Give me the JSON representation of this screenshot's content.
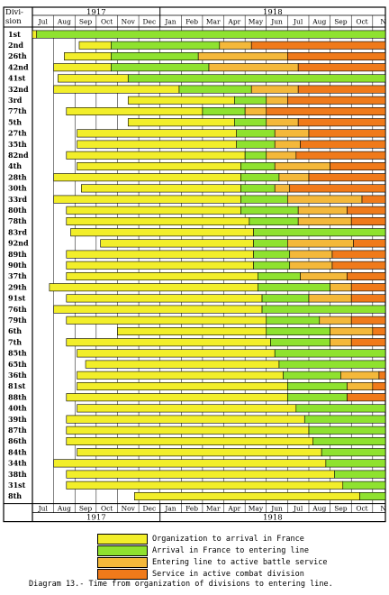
{
  "chart_data": {
    "type": "bar",
    "row_header": "Divi-\nsion",
    "months": [
      "Jul",
      "Aug",
      "Sep",
      "Oct",
      "Nov",
      "Dec",
      "Jan",
      "Feb",
      "Mar",
      "Apr",
      "May",
      "Jun",
      "Jul",
      "Aug",
      "Sep",
      "Oct",
      "N"
    ],
    "bottom_months": [
      "Jul",
      "Aug",
      "Sep",
      "Oct",
      "Nov",
      "Dec",
      "Jan",
      "Feb",
      "Mar",
      "Apr",
      "May",
      "Jun",
      "Jul",
      "Aug",
      "Sep",
      "Oct",
      "N"
    ],
    "top_year_labels": [
      "1917",
      "1918"
    ],
    "bottom_year_labels": [
      "1917",
      "1918"
    ],
    "colors": {
      "organization": "#f2ee2a",
      "arrival": "#8fe22f",
      "entering": "#f4b83a",
      "service": "#f07a1a"
    },
    "legend": [
      {
        "key": "organization",
        "label": "Organization to arrival in France"
      },
      {
        "key": "arrival",
        "label": "Arrival in France to entering line"
      },
      {
        "key": "entering",
        "label": "Entering line to active battle service"
      },
      {
        "key": "service",
        "label": "Service in active combat division"
      }
    ],
    "x_axis_note": "months from July 1917 to November 1918",
    "xlim": [
      0,
      16.6
    ],
    "divisions": [
      {
        "name": "1st",
        "segments": [
          [
            0.0,
            0.2,
            "organization"
          ],
          [
            0.2,
            16.6,
            "arrival"
          ]
        ]
      },
      {
        "name": "2nd",
        "segments": [
          [
            2.2,
            3.7,
            "organization"
          ],
          [
            3.7,
            8.8,
            "arrival"
          ],
          [
            8.8,
            10.3,
            "entering"
          ],
          [
            10.3,
            16.6,
            "service"
          ]
        ]
      },
      {
        "name": "26th",
        "segments": [
          [
            1.5,
            3.7,
            "organization"
          ],
          [
            3.7,
            7.8,
            "arrival"
          ],
          [
            7.8,
            12.0,
            "entering"
          ],
          [
            12.0,
            16.6,
            "service"
          ]
        ]
      },
      {
        "name": "42nd",
        "segments": [
          [
            1.0,
            3.7,
            "organization"
          ],
          [
            3.7,
            8.3,
            "arrival"
          ],
          [
            8.3,
            12.5,
            "entering"
          ],
          [
            12.5,
            16.6,
            "service"
          ]
        ]
      },
      {
        "name": "41st",
        "segments": [
          [
            1.2,
            4.5,
            "organization"
          ],
          [
            4.5,
            16.6,
            "arrival"
          ]
        ]
      },
      {
        "name": "32nd",
        "segments": [
          [
            1.0,
            6.9,
            "organization"
          ],
          [
            6.9,
            10.3,
            "arrival"
          ],
          [
            10.3,
            12.5,
            "entering"
          ],
          [
            12.5,
            16.6,
            "service"
          ]
        ]
      },
      {
        "name": "3rd",
        "segments": [
          [
            4.5,
            9.5,
            "organization"
          ],
          [
            9.5,
            11.0,
            "arrival"
          ],
          [
            11.0,
            12.0,
            "entering"
          ],
          [
            12.0,
            16.6,
            "service"
          ]
        ]
      },
      {
        "name": "77th",
        "segments": [
          [
            1.6,
            8.0,
            "organization"
          ],
          [
            8.0,
            10.0,
            "arrival"
          ],
          [
            10.0,
            11.0,
            "entering"
          ],
          [
            11.0,
            16.6,
            "service"
          ]
        ]
      },
      {
        "name": "5th",
        "segments": [
          [
            4.5,
            9.5,
            "organization"
          ],
          [
            9.5,
            11.0,
            "arrival"
          ],
          [
            11.0,
            12.5,
            "entering"
          ],
          [
            12.5,
            16.6,
            "service"
          ]
        ]
      },
      {
        "name": "27th",
        "segments": [
          [
            2.1,
            9.6,
            "organization"
          ],
          [
            9.6,
            11.4,
            "arrival"
          ],
          [
            11.4,
            13.0,
            "entering"
          ],
          [
            13.0,
            16.6,
            "service"
          ]
        ]
      },
      {
        "name": "35th",
        "segments": [
          [
            2.1,
            9.6,
            "organization"
          ],
          [
            9.6,
            11.4,
            "arrival"
          ],
          [
            11.4,
            12.6,
            "entering"
          ],
          [
            12.6,
            16.6,
            "service"
          ]
        ]
      },
      {
        "name": "82nd",
        "segments": [
          [
            1.6,
            10.0,
            "organization"
          ],
          [
            10.0,
            11.0,
            "arrival"
          ],
          [
            11.0,
            12.4,
            "entering"
          ],
          [
            12.4,
            16.6,
            "service"
          ]
        ]
      },
      {
        "name": "4th",
        "segments": [
          [
            2.1,
            9.8,
            "organization"
          ],
          [
            9.8,
            11.4,
            "arrival"
          ],
          [
            11.4,
            14.0,
            "entering"
          ],
          [
            14.0,
            16.6,
            "service"
          ]
        ]
      },
      {
        "name": "28th",
        "segments": [
          [
            1.0,
            9.8,
            "organization"
          ],
          [
            9.8,
            11.6,
            "arrival"
          ],
          [
            11.6,
            13.0,
            "entering"
          ],
          [
            13.0,
            16.6,
            "service"
          ]
        ]
      },
      {
        "name": "30th",
        "segments": [
          [
            2.3,
            9.8,
            "organization"
          ],
          [
            9.8,
            11.4,
            "arrival"
          ],
          [
            11.4,
            12.1,
            "entering"
          ],
          [
            12.1,
            16.6,
            "service"
          ]
        ]
      },
      {
        "name": "33rd",
        "segments": [
          [
            1.0,
            9.8,
            "organization"
          ],
          [
            9.8,
            12.0,
            "arrival"
          ],
          [
            12.0,
            15.5,
            "entering"
          ],
          [
            15.5,
            16.6,
            "service"
          ]
        ]
      },
      {
        "name": "80th",
        "segments": [
          [
            1.6,
            9.8,
            "organization"
          ],
          [
            9.8,
            12.5,
            "arrival"
          ],
          [
            12.5,
            14.8,
            "entering"
          ],
          [
            14.8,
            16.6,
            "service"
          ]
        ]
      },
      {
        "name": "78th",
        "segments": [
          [
            1.6,
            10.2,
            "organization"
          ],
          [
            10.2,
            12.5,
            "arrival"
          ],
          [
            12.5,
            15.0,
            "entering"
          ],
          [
            15.0,
            16.6,
            "service"
          ]
        ]
      },
      {
        "name": "83rd",
        "segments": [
          [
            1.8,
            10.4,
            "organization"
          ],
          [
            10.4,
            16.6,
            "arrival"
          ]
        ]
      },
      {
        "name": "92nd",
        "segments": [
          [
            3.2,
            10.4,
            "organization"
          ],
          [
            10.4,
            12.0,
            "arrival"
          ],
          [
            12.0,
            15.1,
            "entering"
          ],
          [
            15.1,
            16.6,
            "service"
          ]
        ]
      },
      {
        "name": "89th",
        "segments": [
          [
            1.6,
            10.4,
            "organization"
          ],
          [
            10.4,
            12.1,
            "arrival"
          ],
          [
            12.1,
            14.1,
            "entering"
          ],
          [
            14.1,
            16.6,
            "service"
          ]
        ]
      },
      {
        "name": "90th",
        "segments": [
          [
            1.6,
            10.4,
            "organization"
          ],
          [
            10.4,
            12.1,
            "arrival"
          ],
          [
            12.1,
            14.1,
            "entering"
          ],
          [
            14.1,
            16.6,
            "service"
          ]
        ]
      },
      {
        "name": "37th",
        "segments": [
          [
            1.6,
            10.6,
            "organization"
          ],
          [
            10.6,
            12.6,
            "arrival"
          ],
          [
            12.6,
            14.8,
            "entering"
          ],
          [
            14.8,
            16.6,
            "service"
          ]
        ]
      },
      {
        "name": "29th",
        "segments": [
          [
            0.8,
            10.6,
            "organization"
          ],
          [
            10.6,
            14.0,
            "arrival"
          ],
          [
            14.0,
            15.0,
            "entering"
          ],
          [
            15.0,
            16.6,
            "service"
          ]
        ]
      },
      {
        "name": "91st",
        "segments": [
          [
            1.6,
            10.8,
            "organization"
          ],
          [
            10.8,
            13.0,
            "arrival"
          ],
          [
            13.0,
            15.0,
            "entering"
          ],
          [
            15.0,
            16.6,
            "service"
          ]
        ]
      },
      {
        "name": "76th",
        "segments": [
          [
            1.0,
            10.8,
            "organization"
          ],
          [
            10.8,
            16.6,
            "arrival"
          ]
        ]
      },
      {
        "name": "79th",
        "segments": [
          [
            1.6,
            11.0,
            "organization"
          ],
          [
            11.0,
            13.5,
            "arrival"
          ],
          [
            13.5,
            15.0,
            "entering"
          ],
          [
            15.0,
            16.6,
            "service"
          ]
        ]
      },
      {
        "name": "6th",
        "segments": [
          [
            4.0,
            11.0,
            "organization"
          ],
          [
            11.0,
            14.0,
            "arrival"
          ],
          [
            14.0,
            16.0,
            "entering"
          ],
          [
            16.0,
            16.6,
            "service"
          ]
        ]
      },
      {
        "name": "7th",
        "segments": [
          [
            1.6,
            11.2,
            "organization"
          ],
          [
            11.2,
            14.0,
            "arrival"
          ],
          [
            14.0,
            15.0,
            "entering"
          ],
          [
            15.0,
            16.6,
            "service"
          ]
        ]
      },
      {
        "name": "85th",
        "segments": [
          [
            2.1,
            11.4,
            "organization"
          ],
          [
            11.4,
            16.6,
            "arrival"
          ]
        ]
      },
      {
        "name": "65th",
        "segments": [
          [
            2.5,
            11.6,
            "organization"
          ],
          [
            11.6,
            16.6,
            "arrival"
          ]
        ]
      },
      {
        "name": "36th",
        "segments": [
          [
            2.1,
            11.8,
            "organization"
          ],
          [
            11.8,
            14.5,
            "arrival"
          ],
          [
            14.5,
            16.3,
            "entering"
          ],
          [
            16.3,
            16.6,
            "service"
          ]
        ]
      },
      {
        "name": "81st",
        "segments": [
          [
            2.1,
            12.0,
            "organization"
          ],
          [
            12.0,
            14.8,
            "arrival"
          ],
          [
            14.8,
            16.0,
            "entering"
          ],
          [
            16.0,
            16.6,
            "service"
          ]
        ]
      },
      {
        "name": "88th",
        "segments": [
          [
            1.6,
            12.0,
            "organization"
          ],
          [
            12.0,
            14.8,
            "arrival"
          ],
          [
            14.8,
            16.6,
            "service"
          ]
        ]
      },
      {
        "name": "40th",
        "segments": [
          [
            2.1,
            12.4,
            "organization"
          ],
          [
            12.4,
            16.6,
            "arrival"
          ]
        ]
      },
      {
        "name": "39th",
        "segments": [
          [
            1.6,
            12.8,
            "organization"
          ],
          [
            12.8,
            16.6,
            "arrival"
          ]
        ]
      },
      {
        "name": "87th",
        "segments": [
          [
            1.6,
            13.0,
            "organization"
          ],
          [
            13.0,
            16.6,
            "arrival"
          ]
        ]
      },
      {
        "name": "86th",
        "segments": [
          [
            1.6,
            13.2,
            "organization"
          ],
          [
            13.2,
            16.6,
            "arrival"
          ]
        ]
      },
      {
        "name": "84th",
        "segments": [
          [
            2.1,
            13.6,
            "organization"
          ],
          [
            13.6,
            16.6,
            "arrival"
          ]
        ]
      },
      {
        "name": "34th",
        "segments": [
          [
            1.0,
            13.8,
            "organization"
          ],
          [
            13.8,
            16.6,
            "arrival"
          ]
        ]
      },
      {
        "name": "38th",
        "segments": [
          [
            1.6,
            14.2,
            "organization"
          ],
          [
            14.2,
            16.6,
            "arrival"
          ]
        ]
      },
      {
        "name": "31st",
        "segments": [
          [
            1.6,
            14.6,
            "organization"
          ],
          [
            14.6,
            16.6,
            "arrival"
          ]
        ]
      },
      {
        "name": "8th",
        "segments": [
          [
            4.8,
            15.4,
            "organization"
          ],
          [
            15.4,
            16.6,
            "arrival"
          ]
        ]
      }
    ]
  },
  "caption": "Diagram 13.- Time from organization of divisions to entering line."
}
